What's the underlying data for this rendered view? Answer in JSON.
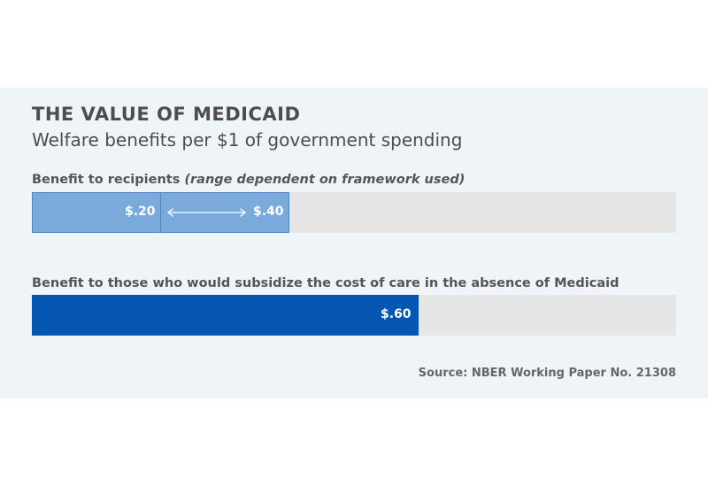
{
  "header": {
    "title": "THE VALUE OF MEDICAID",
    "subtitle": "Welfare benefits per $1 of government spending"
  },
  "rows": [
    {
      "label": "Benefit to recipients",
      "note": "(range dependent on framework used)",
      "low_label": "$.20",
      "high_label": "$.40"
    },
    {
      "label": "Benefit to those who would subsidize the cost of care in the absence of Medicaid",
      "value_label": "$.60"
    }
  ],
  "source": "Source: NBER Working Paper No. 21308",
  "colors": {
    "range_bar": "#7aaadb",
    "solid_bar": "#0556b3",
    "track": "#e6e6e6",
    "panel": "#eff4f9"
  },
  "chart_data": {
    "type": "bar",
    "orientation": "horizontal",
    "title": "THE VALUE OF MEDICAID",
    "subtitle": "Welfare benefits per $1 of government spending",
    "categories": [
      "Benefit to recipients",
      "Benefit to those who would subsidize the cost of care in the absence of Medicaid"
    ],
    "series": [
      {
        "values": [
          [
            0.2,
            0.4
          ],
          0.6
        ]
      }
    ],
    "xlim": [
      0,
      1.0
    ],
    "grid": false,
    "legend": "none"
  }
}
